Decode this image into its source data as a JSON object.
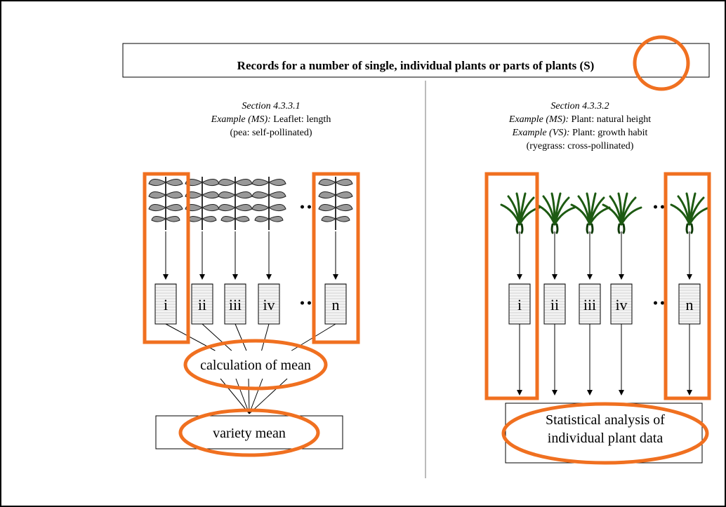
{
  "header": {
    "title": "Records for a number of single, individual plants or parts of plants (S)"
  },
  "left": {
    "section": "Section 4.3.3.1",
    "examples": [
      {
        "label": "Example (MS):",
        "text": "Leaflet:  length"
      }
    ],
    "note": "(pea:  self-pollinated)",
    "boxes": [
      "i",
      "ii",
      "iii",
      "iv",
      "n"
    ],
    "process": "calculation of mean",
    "result": "variety mean"
  },
  "right": {
    "section": "Section 4.3.3.2",
    "examples": [
      {
        "label": "Example (MS):",
        "text": "Plant:  natural height"
      },
      {
        "label": "Example (VS):",
        "text": "Plant:  growth habit"
      }
    ],
    "note": "(ryegrass:  cross-pollinated)",
    "boxes": [
      "i",
      "ii",
      "iii",
      "iv",
      "n"
    ],
    "result": [
      "Statistical analysis of",
      "individual plant data"
    ]
  }
}
